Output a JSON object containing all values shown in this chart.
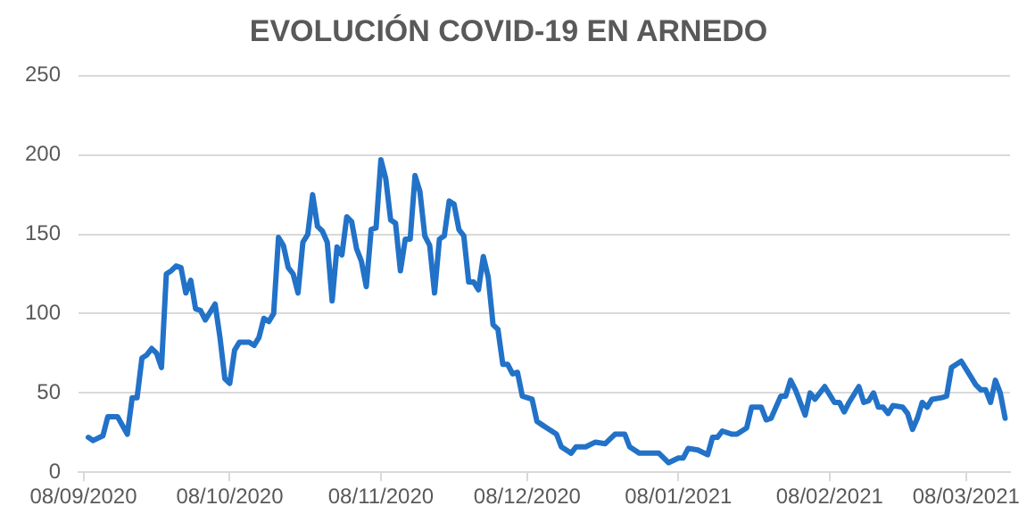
{
  "chart_data": {
    "type": "line",
    "title": "EVOLUCIÓN COVID-19 EN ARNEDO",
    "x": [
      "2020-09-09",
      "2020-09-10",
      "2020-09-12",
      "2020-09-13",
      "2020-09-15",
      "2020-09-17",
      "2020-09-18",
      "2020-09-19",
      "2020-09-20",
      "2020-09-21",
      "2020-09-22",
      "2020-09-23",
      "2020-09-24",
      "2020-09-25",
      "2020-09-26",
      "2020-09-27",
      "2020-09-28",
      "2020-09-29",
      "2020-09-30",
      "2020-10-01",
      "2020-10-02",
      "2020-10-03",
      "2020-10-05",
      "2020-10-06",
      "2020-10-07",
      "2020-10-08",
      "2020-10-09",
      "2020-10-10",
      "2020-10-12",
      "2020-10-13",
      "2020-10-14",
      "2020-10-15",
      "2020-10-16",
      "2020-10-17",
      "2020-10-18",
      "2020-10-19",
      "2020-10-20",
      "2020-10-21",
      "2020-10-22",
      "2020-10-23",
      "2020-10-24",
      "2020-10-25",
      "2020-10-26",
      "2020-10-27",
      "2020-10-28",
      "2020-10-29",
      "2020-10-30",
      "2020-10-31",
      "2020-11-01",
      "2020-11-02",
      "2020-11-03",
      "2020-11-04",
      "2020-11-05",
      "2020-11-06",
      "2020-11-07",
      "2020-11-08",
      "2020-11-09",
      "2020-11-10",
      "2020-11-11",
      "2020-11-12",
      "2020-11-13",
      "2020-11-14",
      "2020-11-15",
      "2020-11-16",
      "2020-11-17",
      "2020-11-18",
      "2020-11-19",
      "2020-11-20",
      "2020-11-21",
      "2020-11-22",
      "2020-11-23",
      "2020-11-24",
      "2020-11-25",
      "2020-11-26",
      "2020-11-27",
      "2020-11-28",
      "2020-11-29",
      "2020-11-30",
      "2020-12-01",
      "2020-12-02",
      "2020-12-03",
      "2020-12-04",
      "2020-12-05",
      "2020-12-06",
      "2020-12-07",
      "2020-12-09",
      "2020-12-10",
      "2020-12-11",
      "2020-12-12",
      "2020-12-14",
      "2020-12-15",
      "2020-12-17",
      "2020-12-18",
      "2020-12-20",
      "2020-12-22",
      "2020-12-24",
      "2020-12-26",
      "2020-12-28",
      "2020-12-29",
      "2020-12-31",
      "2021-01-02",
      "2021-01-04",
      "2021-01-06",
      "2021-01-08",
      "2021-01-09",
      "2021-01-10",
      "2021-01-12",
      "2021-01-14",
      "2021-01-15",
      "2021-01-16",
      "2021-01-17",
      "2021-01-19",
      "2021-01-20",
      "2021-01-22",
      "2021-01-23",
      "2021-01-25",
      "2021-01-26",
      "2021-01-27",
      "2021-01-29",
      "2021-01-30",
      "2021-01-31",
      "2021-02-01",
      "2021-02-03",
      "2021-02-04",
      "2021-02-05",
      "2021-02-07",
      "2021-02-08",
      "2021-02-09",
      "2021-02-10",
      "2021-02-11",
      "2021-02-12",
      "2021-02-14",
      "2021-02-15",
      "2021-02-16",
      "2021-02-17",
      "2021-02-18",
      "2021-02-19",
      "2021-02-20",
      "2021-02-21",
      "2021-02-23",
      "2021-02-24",
      "2021-02-25",
      "2021-02-26",
      "2021-02-27",
      "2021-02-28",
      "2021-03-01",
      "2021-03-03",
      "2021-03-04",
      "2021-03-05",
      "2021-03-06",
      "2021-03-07",
      "2021-03-08",
      "2021-03-10",
      "2021-03-11",
      "2021-03-12",
      "2021-03-13",
      "2021-03-14",
      "2021-03-15",
      "2021-03-16"
    ],
    "series": [
      {
        "color": "#2272c8",
        "values": [
          22,
          20,
          23,
          35,
          35,
          24,
          47,
          47,
          72,
          74,
          78,
          75,
          66,
          125,
          127,
          130,
          129,
          113,
          121,
          103,
          102,
          96,
          106,
          85,
          59,
          56,
          77,
          82,
          82,
          80,
          85,
          97,
          95,
          100,
          148,
          143,
          129,
          125,
          113,
          145,
          150,
          175,
          155,
          152,
          145,
          108,
          142,
          137,
          161,
          158,
          141,
          133,
          117,
          153,
          154,
          197,
          185,
          159,
          157,
          127,
          147,
          147,
          187,
          177,
          149,
          143,
          113,
          147,
          149,
          171,
          169,
          153,
          149,
          120,
          120,
          115,
          136,
          123,
          93,
          90,
          68,
          68,
          62,
          63,
          48,
          46,
          32,
          30,
          28,
          24,
          16,
          12,
          16,
          16,
          19,
          18,
          24,
          24,
          16,
          12,
          12,
          12,
          6,
          9,
          9,
          15,
          14,
          11,
          22,
          22,
          26,
          24,
          24,
          28,
          41,
          41,
          33,
          34,
          48,
          48,
          58,
          52,
          36,
          50,
          46,
          54,
          49,
          44,
          44,
          38,
          44,
          54,
          44,
          45,
          50,
          41,
          41,
          37,
          42,
          41,
          37,
          27,
          34,
          44,
          41,
          46,
          47,
          48,
          66,
          68,
          70,
          65,
          55,
          52,
          52,
          44,
          58,
          50,
          34
        ]
      }
    ],
    "xlim": [
      "2020-09-07",
      "2021-03-17"
    ],
    "xticks": [
      {
        "value": "2020-09-08",
        "label": "08/09/2020"
      },
      {
        "value": "2020-10-08",
        "label": "08/10/2020"
      },
      {
        "value": "2020-11-08",
        "label": "08/11/2020"
      },
      {
        "value": "2020-12-08",
        "label": "08/12/2020"
      },
      {
        "value": "2021-01-08",
        "label": "08/01/2021"
      },
      {
        "value": "2021-02-08",
        "label": "08/02/2021"
      },
      {
        "value": "2021-03-08",
        "label": "08/03/2021"
      }
    ],
    "ylim": [
      0,
      250
    ],
    "yticks": [
      0,
      50,
      100,
      150,
      200,
      250
    ],
    "grid": "y",
    "marker": "none",
    "line_style": "solid",
    "legend": false
  }
}
